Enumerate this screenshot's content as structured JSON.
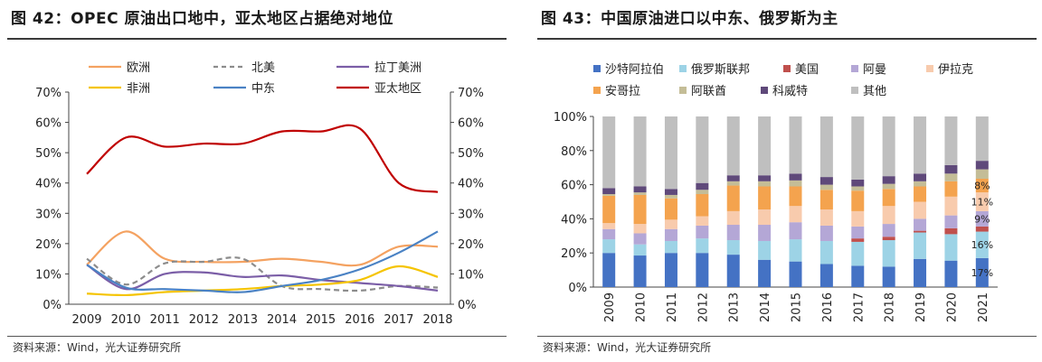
{
  "left": {
    "title": "图 42：OPEC 原油出口地中，亚太地区占据绝对地位",
    "source": "资料来源：Wind，光大证券研究所"
  },
  "right": {
    "title": "图 43：中国原油进口以中东、俄罗斯为主",
    "source": "资料来源：Wind，光大证券研究所"
  },
  "chart_data": [
    {
      "type": "line",
      "x": [
        "2009",
        "2010",
        "2011",
        "2012",
        "2013",
        "2014",
        "2015",
        "2016",
        "2017",
        "2018"
      ],
      "y_ticks": [
        "0%",
        "10%",
        "20%",
        "30%",
        "40%",
        "50%",
        "60%",
        "70%"
      ],
      "ylim": [
        0,
        70
      ],
      "secondary_axis": true,
      "legend_position": "top",
      "series": [
        {
          "name": "欧洲",
          "color": "#f4a261",
          "dash": false,
          "values": [
            13,
            24,
            15,
            14,
            14,
            15,
            14,
            13,
            19,
            19
          ]
        },
        {
          "name": "北美",
          "color": "#8c8c8c",
          "dash": true,
          "values": [
            15,
            6.5,
            13.5,
            14,
            15,
            6,
            5,
            4.5,
            6,
            5.5
          ]
        },
        {
          "name": "拉丁美洲",
          "color": "#7b5ea7",
          "dash": false,
          "values": [
            13,
            5,
            10,
            10.5,
            9,
            9.5,
            8,
            7,
            6,
            4.5
          ]
        },
        {
          "name": "非洲",
          "color": "#f5c400",
          "dash": false,
          "values": [
            3.5,
            3,
            4,
            4.5,
            5,
            6,
            6.5,
            8,
            12.5,
            9
          ]
        },
        {
          "name": "中东",
          "color": "#4a82c4",
          "dash": false,
          "values": [
            13,
            5.5,
            5,
            4.5,
            4,
            6,
            8,
            11.5,
            17,
            24
          ]
        },
        {
          "name": "亚太地区",
          "color": "#c00000",
          "dash": false,
          "values": [
            43,
            55,
            52,
            53,
            53,
            57,
            57,
            58,
            40,
            37
          ]
        }
      ]
    },
    {
      "type": "bar",
      "stacked": true,
      "categories": [
        "2009",
        "2010",
        "2011",
        "2012",
        "2013",
        "2014",
        "2015",
        "2016",
        "2017",
        "2018",
        "2019",
        "2020",
        "2021"
      ],
      "y_ticks": [
        "0%",
        "20%",
        "40%",
        "60%",
        "80%",
        "100%"
      ],
      "ylim": [
        0,
        100
      ],
      "legend_position": "top",
      "series": [
        {
          "name": "沙特阿拉伯",
          "color": "#4472c4",
          "values": [
            20,
            18.5,
            20,
            20,
            19,
            16,
            15,
            13.5,
            12.5,
            12,
            16.5,
            15.5,
            17
          ]
        },
        {
          "name": "俄罗斯联邦",
          "color": "#9dd3e6",
          "values": [
            8,
            6.5,
            7,
            8.5,
            8.5,
            11,
            13,
            13.5,
            14,
            15.5,
            15.5,
            15.5,
            15.5
          ]
        },
        {
          "name": "美国",
          "color": "#c0504d",
          "values": [
            0,
            0,
            0,
            0,
            0,
            0,
            0,
            0,
            2,
            2,
            1,
            3.5,
            3
          ]
        },
        {
          "name": "阿曼",
          "color": "#b4a7d6",
          "values": [
            6,
            6.5,
            7,
            7.5,
            9,
            9.5,
            10,
            9,
            7,
            7.5,
            7,
            7.5,
            9
          ]
        },
        {
          "name": "伊拉克",
          "color": "#f8cbad",
          "values": [
            3.5,
            5.5,
            5.5,
            5.5,
            8,
            9,
            9.5,
            9.5,
            9,
            10.5,
            10,
            11,
            11
          ]
        },
        {
          "name": "安哥拉",
          "color": "#f4a34e",
          "values": [
            16,
            17,
            12.5,
            13,
            15,
            13.5,
            11.5,
            11.5,
            12,
            10,
            9,
            9,
            8
          ]
        },
        {
          "name": "阿联酋",
          "color": "#c4bd97",
          "values": [
            1,
            1.5,
            2,
            2.5,
            2.5,
            3,
            3.5,
            3,
            2.5,
            3,
            3,
            4.5,
            5.5
          ]
        },
        {
          "name": "科威特",
          "color": "#5f497a",
          "values": [
            3.5,
            3.5,
            3.5,
            4,
            3.5,
            3.5,
            4,
            4.5,
            4,
            4.5,
            4.5,
            5,
            5
          ]
        },
        {
          "name": "其他",
          "color": "#bfbfbf",
          "values": [
            42,
            41,
            42.5,
            39,
            34.5,
            34.5,
            33.5,
            35.5,
            37,
            35,
            33.5,
            28.5,
            26
          ]
        }
      ],
      "data_labels": [
        {
          "category": "2021",
          "series": "沙特阿拉伯",
          "text": "17%"
        },
        {
          "category": "2021",
          "series": "俄罗斯联邦",
          "text": "16%"
        },
        {
          "category": "2021",
          "series": "阿曼",
          "text": "9%"
        },
        {
          "category": "2021",
          "series": "伊拉克",
          "text": "11%"
        },
        {
          "category": "2021",
          "series": "安哥拉",
          "text": "8%"
        }
      ]
    }
  ]
}
